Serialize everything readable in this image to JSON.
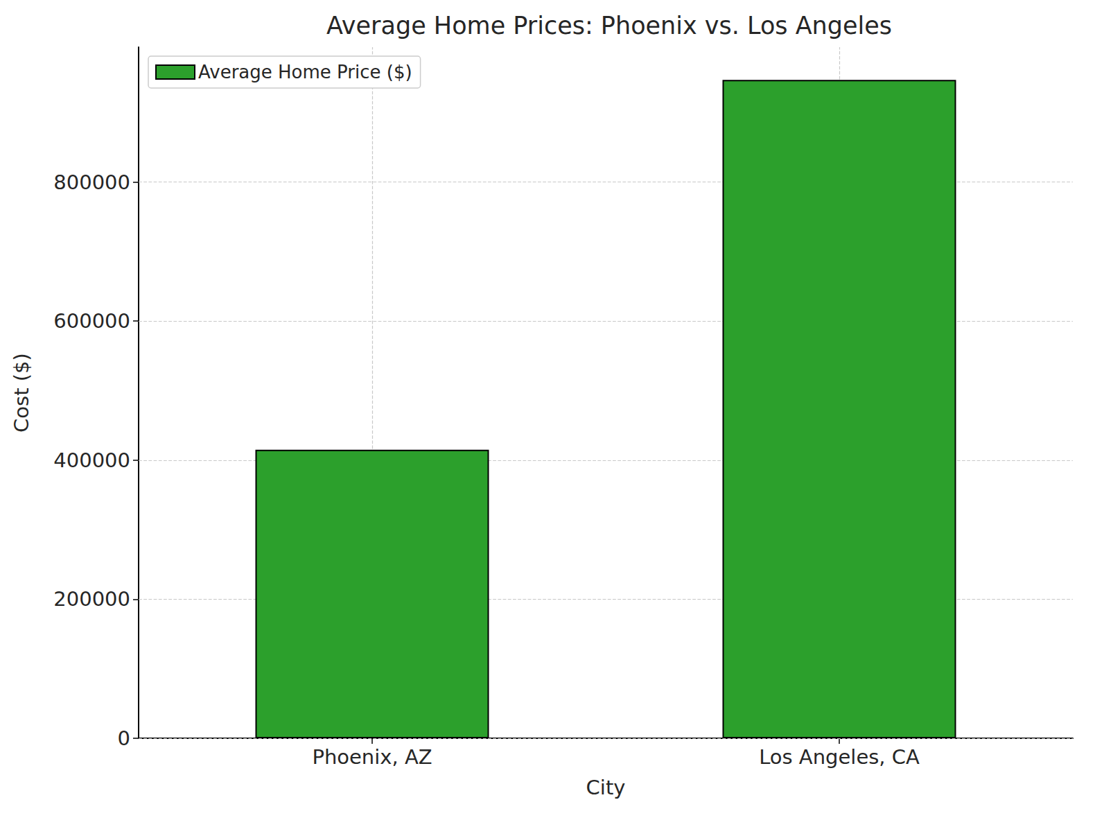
{
  "chart_data": {
    "type": "bar",
    "title": "Average Home Prices: Phoenix vs. Los Angeles",
    "xlabel": "City",
    "ylabel": "Cost ($)",
    "categories": [
      "Phoenix, AZ",
      "Los Angeles, CA"
    ],
    "series": [
      {
        "name": "Average Home Price ($)",
        "color": "#2ca02c",
        "values": [
          415000,
          947000
        ]
      }
    ],
    "ylim": [
      0,
      994000
    ],
    "yticks": [
      0,
      200000,
      400000,
      600000,
      800000
    ],
    "grid": true,
    "legend": "upper left"
  }
}
